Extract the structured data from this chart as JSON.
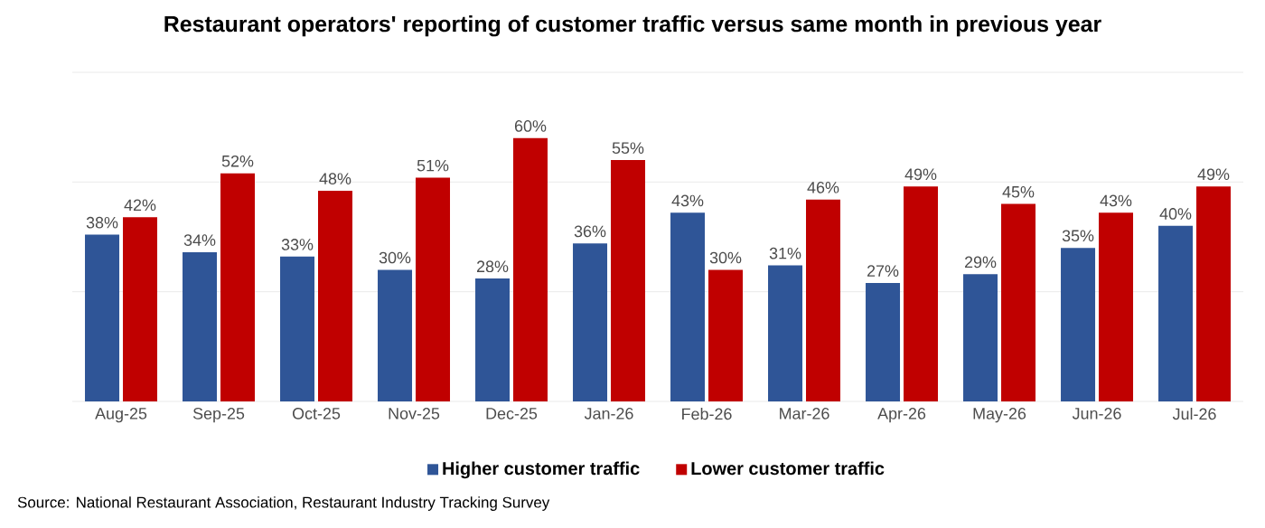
{
  "chart_data": {
    "type": "bar",
    "title": "Restaurant operators' reporting of customer traffic versus same month in previous year",
    "categories": [
      "Aug-25",
      "Sep-25",
      "Oct-25",
      "Nov-25",
      "Dec-25",
      "Jan-26",
      "Feb-26",
      "Mar-26",
      "Apr-26",
      "May-26",
      "Jun-26",
      "Jul-26"
    ],
    "series": [
      {
        "name": "Higher customer traffic",
        "color": "#2f5597",
        "values": [
          38,
          34,
          33,
          30,
          28,
          36,
          43,
          31,
          27,
          29,
          35,
          40
        ],
        "value_labels": [
          "38%",
          "34%",
          "33%",
          "30%",
          "28%",
          "36%",
          "43%",
          "31%",
          "27%",
          "29%",
          "35%",
          "40%"
        ]
      },
      {
        "name": "Lower customer traffic",
        "color": "#c00000",
        "values": [
          42,
          52,
          48,
          51,
          60,
          55,
          30,
          46,
          49,
          45,
          43,
          49
        ],
        "value_labels": [
          "42%",
          "52%",
          "48%",
          "51%",
          "60%",
          "55%",
          "30%",
          "46%",
          "49%",
          "45%",
          "43%",
          "49%"
        ]
      }
    ],
    "ylim": [
      0,
      75
    ],
    "yticks": [
      {
        "value": 0,
        "label": null
      },
      {
        "value": 25,
        "label": null
      },
      {
        "value": 50,
        "label": null
      },
      {
        "value": 75,
        "label": null
      }
    ],
    "grid": "y",
    "tick_labels": "x",
    "legend": "bottom",
    "annotations": [
      "Source: National Restaurant Association, Restaurant Industry Tracking Survey"
    ]
  }
}
